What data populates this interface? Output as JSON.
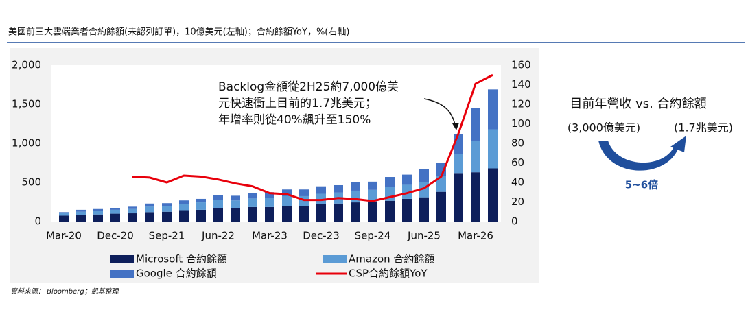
{
  "title": "美國前三大雲端業者合約餘額(未認列訂單)，10億美元(左軸)；合約餘額YoY，%(右軸)",
  "source": "資料來源： Bloomberg；凱基整理",
  "side_panel": {
    "heading": "目前年營收 vs. 合約餘額",
    "revenue": "(3,000億美元)",
    "backlog": "(1.7兆美元)",
    "multiple": "5~6倍"
  },
  "chart_data": {
    "type": "stacked_bar_line",
    "annotation_lines": [
      "Backlog金額從2H25約7,000億美",
      "元快速衝上目前的1.7兆美元；",
      "年增率則從40%飆升至150%"
    ],
    "categories": [
      "Mar-20",
      null,
      null,
      "Dec-20",
      null,
      null,
      "Sep-21",
      null,
      null,
      "Jun-22",
      null,
      null,
      "Mar-23",
      null,
      null,
      "Dec-23",
      null,
      null,
      "Sep-24",
      null,
      null,
      "Jun-25",
      null,
      null,
      "Mar-26",
      null
    ],
    "series": [
      {
        "name": "Microsoft 合約餘額",
        "color": "#0e1f5b",
        "values": [
          75,
          85,
          90,
          100,
          105,
          120,
          125,
          145,
          150,
          170,
          170,
          185,
          185,
          200,
          200,
          220,
          230,
          245,
          250,
          265,
          290,
          310,
          380,
          620,
          630,
          680
        ]
      },
      {
        "name": "Amazon 合約餘額",
        "color": "#5b9bd5",
        "values": [
          30,
          40,
          45,
          50,
          55,
          70,
          70,
          80,
          95,
          105,
          100,
          110,
          115,
          125,
          125,
          135,
          140,
          150,
          155,
          175,
          180,
          195,
          200,
          240,
          400,
          500
        ]
      },
      {
        "name": "Google 合約餘額",
        "color": "#4472c4",
        "values": [
          15,
          25,
          25,
          25,
          30,
          40,
          40,
          45,
          45,
          60,
          60,
          70,
          75,
          85,
          85,
          95,
          95,
          105,
          105,
          130,
          130,
          165,
          170,
          255,
          425,
          510
        ]
      },
      {
        "name": "CSP合約餘額YoY",
        "color": "#e8000b",
        "axis": "y2",
        "values": [
          null,
          null,
          null,
          null,
          46,
          45,
          40,
          47,
          46,
          43,
          39,
          36,
          29,
          28,
          22,
          22,
          24,
          23,
          21,
          25,
          29,
          34,
          46,
          90,
          141,
          150
        ]
      }
    ],
    "ylim": [
      0,
      2000
    ],
    "yticks": [
      0,
      500,
      {
        "value": 1000,
        "label": "1,000"
      },
      {
        "value": 1500,
        "label": "1,500"
      },
      {
        "value": 2000,
        "label": "2,000"
      }
    ],
    "y2lim": [
      0,
      160
    ],
    "y2ticks": [
      0,
      20,
      40,
      60,
      80,
      100,
      120,
      140,
      160
    ]
  }
}
